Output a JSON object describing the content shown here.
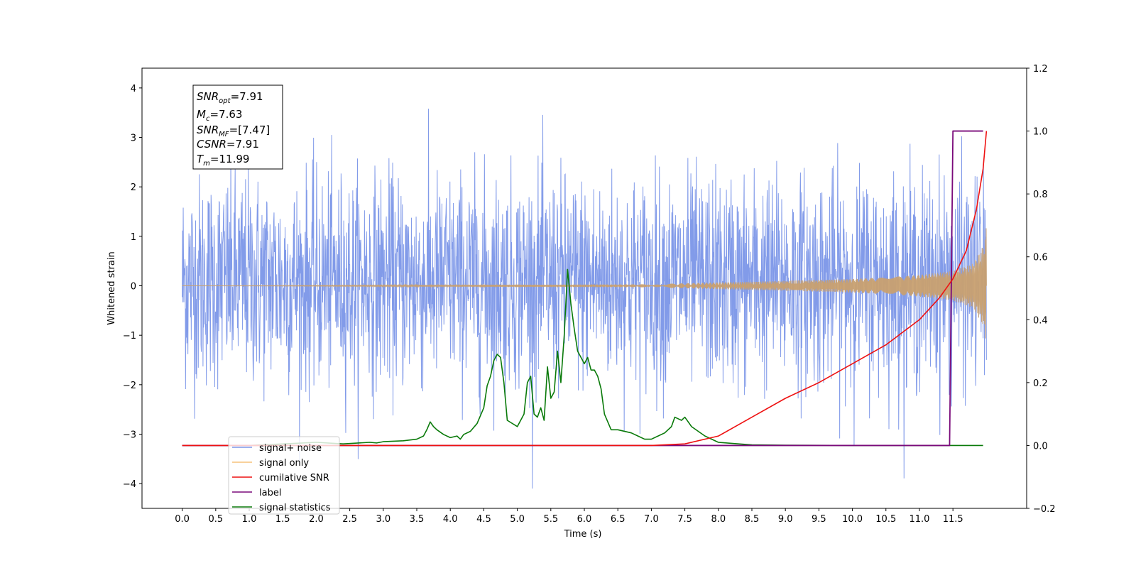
{
  "chart_data": {
    "type": "line",
    "xlabel": "Time (s)",
    "ylabel": "Whitened strain",
    "xlim": [
      -0.6,
      12.6
    ],
    "ylim": [
      -4.5,
      4.4
    ],
    "y2lim": [
      -0.2,
      1.2
    ],
    "x_ticks": [
      "0.0",
      "0.5",
      "1.0",
      "1.5",
      "2.0",
      "2.5",
      "3.0",
      "3.5",
      "4.0",
      "4.5",
      "5.0",
      "5.5",
      "6.0",
      "6.5",
      "7.0",
      "7.5",
      "8.0",
      "8.5",
      "9.0",
      "9.5",
      "10.0",
      "10.5",
      "11.0",
      "11.5"
    ],
    "y_ticks": [
      "4",
      "3",
      "2",
      "1",
      "0",
      "−1",
      "−2",
      "−3",
      "−4"
    ],
    "y2_ticks": [
      "1.2",
      "1.0",
      "0.8",
      "0.6",
      "0.4",
      "0.2",
      "0.0",
      "−0.2"
    ],
    "info_box": {
      "snr_opt": "=7.91",
      "mc": "=7.63",
      "snr_mf": "=[7.47]",
      "csnr": "=7.91",
      "tm": "=11.99"
    },
    "legend": {
      "placement": "lower-left",
      "entries": [
        {
          "label": "signal+ noise",
          "color": "#7b96e8"
        },
        {
          "label": "signal only",
          "color": "#f5c27a"
        },
        {
          "label": "cumilative SNR",
          "color": "#ee1111"
        },
        {
          "label": "label",
          "color": "#7a0a7a"
        },
        {
          "label": "signal statistics",
          "color": "#0a7a0a"
        }
      ]
    },
    "series": [
      {
        "name": "signal+ noise",
        "axis": "left",
        "kind": "noise-band",
        "x_range": [
          0,
          12.0
        ],
        "typical_range": [
          -1.6,
          1.8
        ],
        "max_peak": 4.0,
        "min_peak": -4.1
      },
      {
        "name": "signal only",
        "axis": "left",
        "kind": "chirp-envelope",
        "envelope": {
          "x": [
            0,
            7.0,
            8.0,
            9.0,
            10.0,
            10.5,
            11.0,
            11.5,
            11.8,
            11.95,
            12.0
          ],
          "amp": [
            0,
            0.03,
            0.07,
            0.1,
            0.14,
            0.17,
            0.22,
            0.3,
            0.45,
            0.8,
            1.2
          ]
        }
      },
      {
        "name": "cumilative SNR",
        "axis": "right",
        "x": [
          0,
          7.0,
          7.5,
          8.0,
          8.5,
          9.0,
          9.5,
          10.0,
          10.5,
          11.0,
          11.3,
          11.5,
          11.7,
          11.85,
          11.95,
          12.0
        ],
        "y": [
          0,
          0,
          0.005,
          0.03,
          0.09,
          0.15,
          0.2,
          0.26,
          0.32,
          0.4,
          0.47,
          0.53,
          0.62,
          0.75,
          0.88,
          1.0
        ]
      },
      {
        "name": "label",
        "axis": "right",
        "x": [
          0,
          11.45,
          11.5,
          11.95
        ],
        "y": [
          0,
          0,
          1.0,
          1.0
        ]
      },
      {
        "name": "signal statistics",
        "axis": "right",
        "x": [
          0,
          1.0,
          2.0,
          2.4,
          2.8,
          2.9,
          3.0,
          3.3,
          3.5,
          3.6,
          3.65,
          3.7,
          3.75,
          3.8,
          3.9,
          4.0,
          4.1,
          4.15,
          4.2,
          4.3,
          4.4,
          4.5,
          4.55,
          4.6,
          4.65,
          4.7,
          4.75,
          4.8,
          4.85,
          5.0,
          5.1,
          5.15,
          5.2,
          5.25,
          5.3,
          5.35,
          5.4,
          5.45,
          5.5,
          5.55,
          5.6,
          5.65,
          5.7,
          5.75,
          5.8,
          5.85,
          5.9,
          5.95,
          6.0,
          6.05,
          6.1,
          6.15,
          6.2,
          6.25,
          6.3,
          6.4,
          6.5,
          6.7,
          6.8,
          6.9,
          7.0,
          7.1,
          7.2,
          7.3,
          7.35,
          7.4,
          7.45,
          7.5,
          7.6,
          7.8,
          8.0,
          8.3,
          8.5,
          9.0,
          10.0,
          11.0,
          11.5,
          11.95
        ],
        "y": [
          0,
          0,
          0.01,
          0.005,
          0.01,
          0.008,
          0.012,
          0.015,
          0.02,
          0.03,
          0.05,
          0.075,
          0.06,
          0.05,
          0.035,
          0.025,
          0.03,
          0.02,
          0.035,
          0.045,
          0.07,
          0.12,
          0.19,
          0.22,
          0.27,
          0.29,
          0.28,
          0.2,
          0.08,
          0.06,
          0.1,
          0.2,
          0.22,
          0.1,
          0.09,
          0.12,
          0.08,
          0.25,
          0.15,
          0.17,
          0.3,
          0.2,
          0.35,
          0.56,
          0.45,
          0.37,
          0.3,
          0.28,
          0.26,
          0.28,
          0.24,
          0.24,
          0.22,
          0.18,
          0.1,
          0.05,
          0.05,
          0.04,
          0.03,
          0.02,
          0.02,
          0.03,
          0.04,
          0.06,
          0.09,
          0.085,
          0.08,
          0.09,
          0.06,
          0.03,
          0.01,
          0.005,
          0.002,
          0.001,
          0.0,
          0.0,
          0.0,
          0.0
        ]
      }
    ]
  }
}
